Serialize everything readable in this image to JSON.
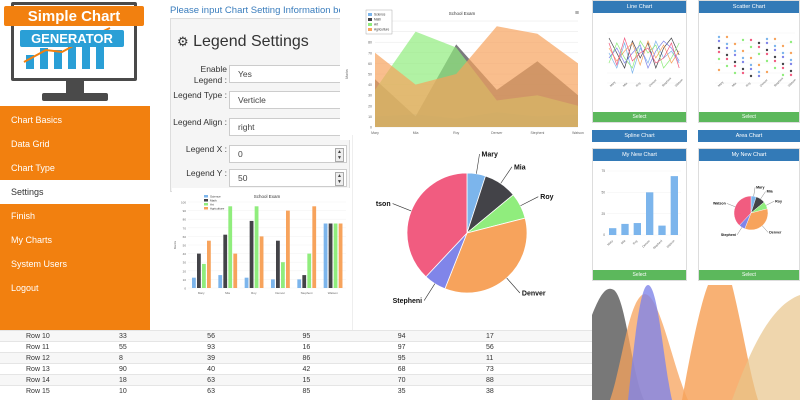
{
  "logo": {
    "line1": "Simple Chart",
    "line2": "GENERATOR"
  },
  "sidebar": {
    "items": [
      {
        "label": "Chart Basics",
        "active": false
      },
      {
        "label": "Data Grid",
        "active": false
      },
      {
        "label": "Chart Type",
        "active": false
      },
      {
        "label": "Settings",
        "active": true
      },
      {
        "label": "Finish",
        "active": false
      },
      {
        "label": "My Charts",
        "active": false
      },
      {
        "label": "System Users",
        "active": false
      },
      {
        "label": "Logout",
        "active": false
      }
    ]
  },
  "intro_text": "Please input Chart Setting Information below",
  "legend_settings": {
    "title": "Legend Settings",
    "icon": "gear-icon",
    "fields": [
      {
        "label": "Enable Legend :",
        "value": "Yes"
      },
      {
        "label": "Legend Type :",
        "value": "Verticle"
      },
      {
        "label": "Legend Align :",
        "value": "right"
      },
      {
        "label": "Legend X :",
        "value": "0"
      },
      {
        "label": "Legend Y :",
        "value": "50"
      }
    ]
  },
  "area_chart": {
    "title": "School Exam",
    "menu_icon": "≡",
    "legend": [
      "Science",
      "Math",
      "Art",
      "Agriculture"
    ],
    "categories": [
      "Mary",
      "Mia",
      "Roy",
      "Denver",
      "Stepheni",
      "Watson"
    ],
    "y_ticks": [
      "0",
      "10",
      "20",
      "30",
      "40",
      "50",
      "60",
      "70",
      "80",
      "90",
      "100"
    ],
    "y_label": "Marks",
    "series": [
      {
        "name": "Science",
        "values": [
          10,
          12,
          8,
          14,
          10,
          12
        ],
        "color": "#7cb5ec"
      },
      {
        "name": "Math",
        "values": [
          45,
          10,
          78,
          35,
          62,
          30
        ],
        "color": "#434348"
      },
      {
        "name": "Art",
        "values": [
          35,
          90,
          75,
          25,
          30,
          20
        ],
        "color": "#90ed7d"
      },
      {
        "name": "Agriculture",
        "values": [
          70,
          40,
          50,
          95,
          88,
          60
        ],
        "color": "#f7a35c"
      }
    ]
  },
  "bar_chart": {
    "title": "School Exam",
    "legend": [
      "Science",
      "Math",
      "Art",
      "Agriculture"
    ],
    "categories": [
      "Mary",
      "Mia",
      "Roy",
      "Denver",
      "Stepheni",
      "Watson"
    ],
    "y_ticks": [
      "0",
      "10",
      "20",
      "30",
      "40",
      "50",
      "60",
      "70",
      "80",
      "90",
      "100"
    ],
    "y_label": "Marks",
    "series": [
      {
        "name": "Science",
        "values": [
          12,
          15,
          12,
          10,
          10,
          75
        ],
        "color": "#7cb5ec"
      },
      {
        "name": "Math",
        "values": [
          40,
          62,
          78,
          55,
          15,
          75
        ],
        "color": "#434348"
      },
      {
        "name": "Art",
        "values": [
          28,
          95,
          95,
          30,
          40,
          75
        ],
        "color": "#90ed7d"
      },
      {
        "name": "Agriculture",
        "values": [
          55,
          40,
          60,
          90,
          95,
          75
        ],
        "color": "#f7a35c"
      }
    ]
  },
  "pie_chart": {
    "slices": [
      {
        "name": "Mary",
        "value": 5,
        "color": "#7cb5ec"
      },
      {
        "name": "Mia",
        "value": 9,
        "color": "#434348"
      },
      {
        "name": "Roy",
        "value": 7,
        "color": "#90ed7d"
      },
      {
        "name": "Denver",
        "value": 35,
        "color": "#f7a35c"
      },
      {
        "name": "Stepheni",
        "value": 6,
        "color": "#8085e9"
      },
      {
        "name": "Watson",
        "value": 38,
        "color": "#f15c80"
      }
    ],
    "visible_labels": [
      "Mary",
      "Mia",
      "Roy",
      "Denver",
      "Stepheni",
      "tson"
    ]
  },
  "small_cards": {
    "line_chart": {
      "title": "Line Chart",
      "button": "Select"
    },
    "scatter_chart": {
      "title": "Scatter Chart",
      "button": "Select"
    },
    "spline_chart": {
      "title": "Spline Chart"
    },
    "area_chart": {
      "title": "Area Chart"
    },
    "new_chart_bar": {
      "title": "My New Chart",
      "button": "Select",
      "categories": [
        "Mary",
        "Mia",
        "Roy",
        "Denver",
        "Stepheni",
        "Watson"
      ],
      "values": [
        8,
        13,
        14,
        50,
        11,
        69
      ],
      "y_ticks": [
        "0",
        "25",
        "50",
        "75"
      ]
    },
    "new_chart_pie": {
      "title": "My New Chart",
      "button": "Select",
      "labels": [
        "Mary",
        "Mia",
        "Roy",
        "Denver",
        "Stepheni",
        "Watson"
      ]
    }
  },
  "data_grid": {
    "rows": [
      [
        "Row 10",
        "33",
        "56",
        "95",
        "94",
        "17"
      ],
      [
        "Row 11",
        "55",
        "93",
        "16",
        "97",
        "56"
      ],
      [
        "Row 12",
        "8",
        "39",
        "86",
        "95",
        "11"
      ],
      [
        "Row 13",
        "90",
        "40",
        "42",
        "68",
        "73"
      ],
      [
        "Row 14",
        "18",
        "63",
        "15",
        "70",
        "88"
      ],
      [
        "Row 15",
        "10",
        "63",
        "85",
        "35",
        "38"
      ]
    ]
  }
}
